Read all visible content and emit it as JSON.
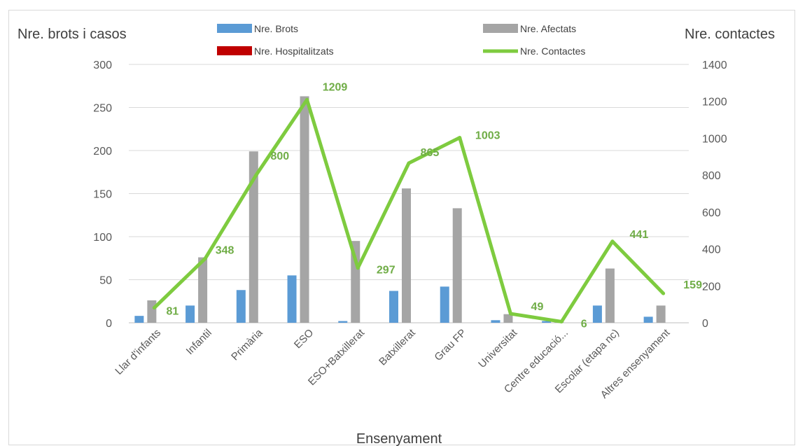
{
  "chart_data": {
    "type": "bar",
    "categories": [
      "Llar d'infants",
      "Infantil",
      "Primària",
      "ESO",
      "ESO+Batxillerat",
      "Batxillerat",
      "Grau FP",
      "Universitat",
      "Centre educació...",
      "Escolar (etapa nc)",
      "Altres ensenyament"
    ],
    "xlabel": "Ensenyament",
    "ylabel": "Nre. brots i casos",
    "ylabel_right": "Nre. contactes",
    "ylim": [
      0,
      300
    ],
    "yticks": [
      "0",
      "50",
      "100",
      "150",
      "200",
      "250",
      "300"
    ],
    "ylim_right": [
      0,
      1400
    ],
    "yticks_right": [
      "0",
      "200",
      "400",
      "600",
      "800",
      "1000",
      "1200",
      "1400"
    ],
    "grid": true,
    "legend_position": "top",
    "series": [
      {
        "name": "Nre. Brots",
        "axis": "left",
        "kind": "bar",
        "color": "#5b9bd5",
        "values": [
          8,
          20,
          38,
          55,
          2,
          37,
          42,
          3,
          2,
          20,
          7
        ]
      },
      {
        "name": "Nre. Afectats",
        "axis": "left",
        "kind": "bar",
        "color": "#a5a5a5",
        "values": [
          26,
          76,
          199,
          263,
          95,
          156,
          133,
          10,
          2,
          63,
          20
        ]
      },
      {
        "name": "Nre. Hospitalitzats",
        "axis": "left",
        "kind": "bar",
        "color": "#c00000",
        "values": [
          0,
          0,
          0,
          0,
          0,
          0,
          0,
          0,
          0,
          0,
          0
        ]
      },
      {
        "name": "Nre.  Contactes",
        "axis": "right",
        "kind": "line",
        "color": "#7ecb3f",
        "values": [
          81,
          348,
          800,
          1209,
          297,
          865,
          1003,
          49,
          6,
          441,
          159
        ],
        "labels": [
          "81",
          "348",
          "800",
          "1209",
          "297",
          "865",
          "1003",
          "49",
          "6",
          "441",
          "159"
        ]
      }
    ]
  }
}
